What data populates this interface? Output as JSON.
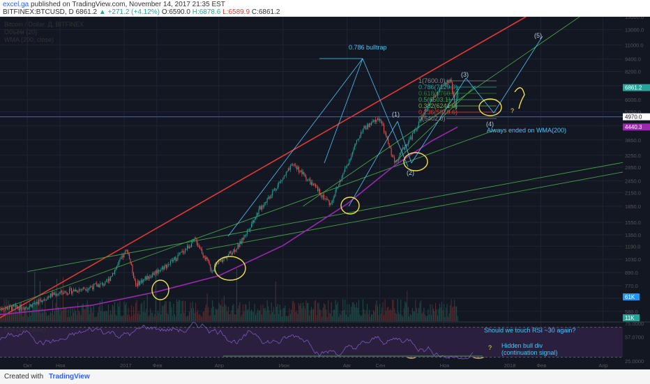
{
  "header": {
    "user": "excel.ga",
    "published": "published on TradingView.com, November 14, 2017 21:35 EST",
    "symbol": "BITFINEX:BTCUSD, D",
    "last": "6861.2",
    "change": "▲ +271.2 (+4.12%)",
    "ohlc_o": "O:6590.0",
    "ohlc_h": "H:6878.6",
    "ohlc_l": "L:6589.9",
    "ohlc_c": "C:6861.2"
  },
  "legend": {
    "title": "Bitcoin / Dollar, Д, BITFINEX",
    "volume": "Объём (20)",
    "wma": "WMA (200, close)",
    "rsi": "RSI (14, close)"
  },
  "annotations": {
    "bulltrap": "0.786 bulltrap",
    "wave1": "(1)",
    "wave2": "(2)",
    "wave3": "(3)",
    "wave4": "(4)",
    "wave5": "(5)",
    "wma_note": "Always ended on WMA(200)",
    "question": "?",
    "rsi_question": "Should we touch RSI ~30 again?",
    "hidden_div_1": "Hidden bull div",
    "hidden_div_2": "(continuation signal)"
  },
  "fib_levels": [
    {
      "label": "1(7600.0)",
      "color": "#888888"
    },
    {
      "label": "0.786(7129.0)",
      "color": "#26a69a"
    },
    {
      "label": "0.618(6760.9)",
      "color": "#2e7d32"
    },
    {
      "label": "0.5(6503.1)",
      "color": "#43a047"
    },
    {
      "label": "0.382(6241.0)",
      "color": "#7cb342"
    },
    {
      "label": "0.236(5919.6)",
      "color": "#e53935"
    },
    {
      "label": "0(5402.0)",
      "color": "#888888"
    }
  ],
  "chart_data": {
    "type": "candlestick",
    "title": "Bitcoin / Dollar, Д, BITFINEX",
    "yscale": "log",
    "ylim": [
      520,
      15000
    ],
    "y_ticks": [
      "15000.0",
      "13000.0",
      "11000.0",
      "9400.0",
      "8200.0",
      "7000.0",
      "6000.0",
      "5250.0",
      "4500.0",
      "3850.0",
      "3250.0",
      "2850.0",
      "2450.0",
      "2150.0",
      "1850.0",
      "1550.0",
      "1350.0",
      "1190.0",
      "1030.0",
      "890.0",
      "770.0",
      "670.0",
      "580.0"
    ],
    "x_ticks": [
      "Окт",
      "Ноя",
      "2017",
      "Фев",
      "Апр",
      "Июн",
      "Авг",
      "Сен",
      "Ноя",
      "2018",
      "Фев",
      "Апр"
    ],
    "price_tags": [
      {
        "label": "6861.2",
        "value": 6861.2,
        "color": "#26a69a"
      },
      {
        "label": "4970.0",
        "value": 4970,
        "color": "#ffffff"
      },
      {
        "label": "4440.3",
        "value": 4440.3,
        "color": "#9c27b0"
      }
    ],
    "volume_tags": [
      {
        "label": "61K",
        "color": "#2196f3"
      },
      {
        "label": "11K",
        "color": "#26a69a"
      }
    ],
    "price_path": [
      [
        "2016-09-05",
        600
      ],
      [
        "2016-10-01",
        610
      ],
      [
        "2016-10-25",
        700
      ],
      [
        "2016-11-20",
        740
      ],
      [
        "2016-12-15",
        790
      ],
      [
        "2017-01-04",
        1150
      ],
      [
        "2017-01-12",
        780
      ],
      [
        "2017-02-15",
        1000
      ],
      [
        "2017-03-10",
        1280
      ],
      [
        "2017-03-25",
        920
      ],
      [
        "2017-04-20",
        1200
      ],
      [
        "2017-05-10",
        1800
      ],
      [
        "2017-06-11",
        2950
      ],
      [
        "2017-07-16",
        1900
      ],
      [
        "2017-08-15",
        4300
      ],
      [
        "2017-09-01",
        4900
      ],
      [
        "2017-09-15",
        3000
      ],
      [
        "2017-10-05",
        4300
      ],
      [
        "2017-10-20",
        6000
      ],
      [
        "2017-11-07",
        7600
      ],
      [
        "2017-11-12",
        5500
      ],
      [
        "2017-11-14",
        6861.2
      ]
    ],
    "wma_200": [
      [
        "2016-09-05",
        560
      ],
      [
        "2016-12-01",
        620
      ],
      [
        "2017-02-01",
        720
      ],
      [
        "2017-04-01",
        860
      ],
      [
        "2017-06-01",
        1200
      ],
      [
        "2017-08-01",
        1900
      ],
      [
        "2017-09-15",
        2900
      ],
      [
        "2017-10-20",
        3800
      ],
      [
        "2017-11-14",
        4440.3
      ]
    ],
    "rsi": {
      "ylim": [
        25,
        75
      ],
      "y_ticks": [
        "75.0000",
        "57.0700",
        "25.0000"
      ],
      "last": 57.07,
      "bands": [
        70,
        30
      ]
    }
  },
  "colors": {
    "up": "#26a69a",
    "down": "#ef5350",
    "wma": "#9c27b0",
    "trend_red": "#e53935",
    "trend_green": "#43a047",
    "wave_lines": "#4fc3f7",
    "circles": "#f4e04d",
    "bg": "#131722"
  },
  "footer": {
    "created": "Created with",
    "brand": "TradingView"
  }
}
